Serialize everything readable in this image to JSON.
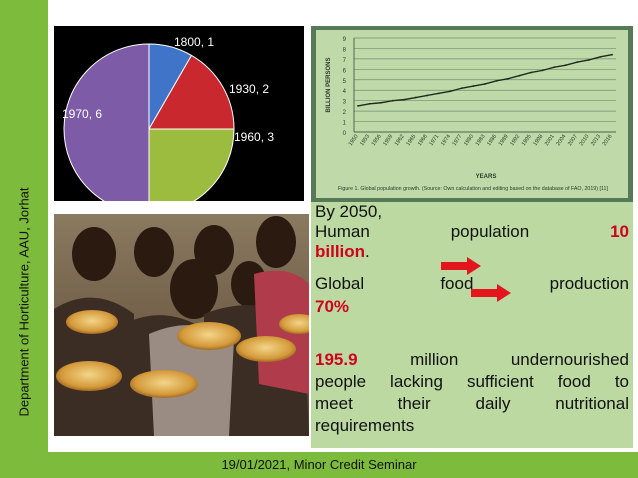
{
  "sidebar": {
    "label": "Department of Horticulture, AAU, Jorhat"
  },
  "footer": {
    "label": "19/01/2021, Minor Credit Seminar"
  },
  "pie_chart": {
    "labels": [
      "1800, 1",
      "1930, 2",
      "1960, 3",
      "1970, 6"
    ]
  },
  "chart_data": [
    {
      "type": "pie",
      "categories": [
        "1800",
        "1930",
        "1960",
        "1970"
      ],
      "values": [
        1,
        2,
        3,
        6
      ],
      "labels": [
        "1800, 1",
        "1930, 2",
        "1960, 3",
        "1970, 6"
      ],
      "colors": [
        "#3f74c9",
        "#c9292e",
        "#9bbc3f",
        "#7d5ba6"
      ]
    },
    {
      "type": "line",
      "ylabel": "BILLION PERSONS",
      "xlabel": "YEARS",
      "ylim": [
        0,
        9
      ],
      "yticks": [
        "0",
        "1",
        "2",
        "3",
        "4",
        "5",
        "6",
        "7",
        "8",
        "9"
      ],
      "x": [
        "1950",
        "1953",
        "1956",
        "1959",
        "1962",
        "1965",
        "1968",
        "1971",
        "1974",
        "1977",
        "1980",
        "1983",
        "1986",
        "1989",
        "1992",
        "1995",
        "1998",
        "2001",
        "2004",
        "2007",
        "2010",
        "2013",
        "2016"
      ],
      "series": [
        {
          "values": [
            2.5,
            2.7,
            2.8,
            3.0,
            3.1,
            3.3,
            3.5,
            3.7,
            3.9,
            4.2,
            4.4,
            4.6,
            4.9,
            5.1,
            5.4,
            5.7,
            5.9,
            6.2,
            6.4,
            6.7,
            6.9,
            7.2,
            7.4
          ]
        }
      ],
      "caption": "Figure 1. Global population growth. (Source: Own calculation and editing based on the database of FAO, 2019) [11]"
    }
  ],
  "textbox": {
    "line1": "By 2050,",
    "human_population_label": "Human population",
    "human_population_value": "10",
    "human_population_unit": "billion",
    "period": ".",
    "global_label": "Global",
    "food_label": "food",
    "production_label": "production",
    "food_production_value": "70%",
    "undernourished_value": "195.9",
    "undernourished_line1_rest": "million undernourished",
    "undernourished_line2": "people lacking sufficient food to",
    "undernourished_line3": "meet their daily nutritional",
    "undernourished_line4": "requirements"
  },
  "colors": {
    "green_bar": "#7dbb3c",
    "highlight_red": "#d0021b",
    "text_panel": "#bcd9a2"
  },
  "photo": {
    "icon": "hungry-children-photo"
  }
}
